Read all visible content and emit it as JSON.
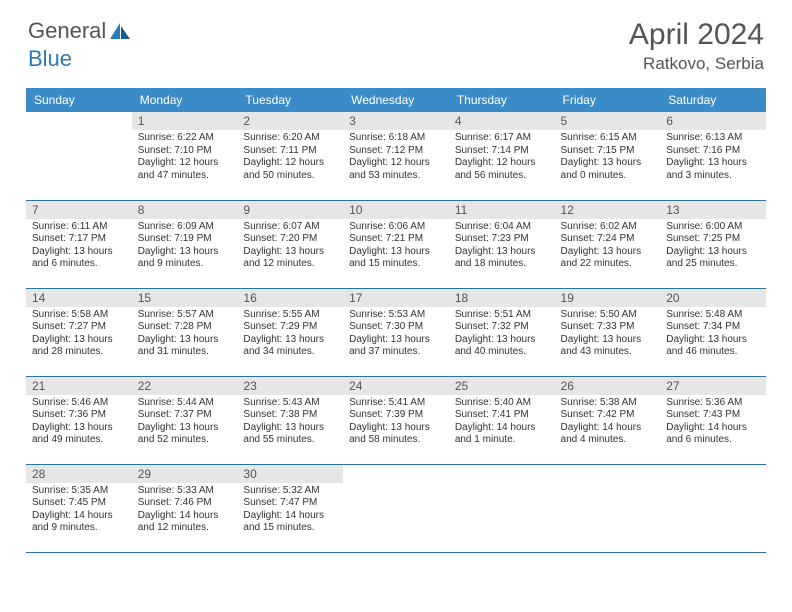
{
  "brand": {
    "part1": "General",
    "part2": "Blue"
  },
  "title": "April 2024",
  "location": "Ratkovo, Serbia",
  "colors": {
    "header_bg": "#3b8bc8",
    "header_text": "#ffffff",
    "daynum_bg": "#e6e6e6",
    "row_border": "#2a6fa8",
    "text": "#333333",
    "brand_gray": "#555555",
    "brand_blue": "#2a7ab8"
  },
  "day_headers": [
    "Sunday",
    "Monday",
    "Tuesday",
    "Wednesday",
    "Thursday",
    "Friday",
    "Saturday"
  ],
  "weeks": [
    [
      null,
      {
        "n": "1",
        "sr": "6:22 AM",
        "ss": "7:10 PM",
        "dl": "12 hours and 47 minutes."
      },
      {
        "n": "2",
        "sr": "6:20 AM",
        "ss": "7:11 PM",
        "dl": "12 hours and 50 minutes."
      },
      {
        "n": "3",
        "sr": "6:18 AM",
        "ss": "7:12 PM",
        "dl": "12 hours and 53 minutes."
      },
      {
        "n": "4",
        "sr": "6:17 AM",
        "ss": "7:14 PM",
        "dl": "12 hours and 56 minutes."
      },
      {
        "n": "5",
        "sr": "6:15 AM",
        "ss": "7:15 PM",
        "dl": "13 hours and 0 minutes."
      },
      {
        "n": "6",
        "sr": "6:13 AM",
        "ss": "7:16 PM",
        "dl": "13 hours and 3 minutes."
      }
    ],
    [
      {
        "n": "7",
        "sr": "6:11 AM",
        "ss": "7:17 PM",
        "dl": "13 hours and 6 minutes."
      },
      {
        "n": "8",
        "sr": "6:09 AM",
        "ss": "7:19 PM",
        "dl": "13 hours and 9 minutes."
      },
      {
        "n": "9",
        "sr": "6:07 AM",
        "ss": "7:20 PM",
        "dl": "13 hours and 12 minutes."
      },
      {
        "n": "10",
        "sr": "6:06 AM",
        "ss": "7:21 PM",
        "dl": "13 hours and 15 minutes."
      },
      {
        "n": "11",
        "sr": "6:04 AM",
        "ss": "7:23 PM",
        "dl": "13 hours and 18 minutes."
      },
      {
        "n": "12",
        "sr": "6:02 AM",
        "ss": "7:24 PM",
        "dl": "13 hours and 22 minutes."
      },
      {
        "n": "13",
        "sr": "6:00 AM",
        "ss": "7:25 PM",
        "dl": "13 hours and 25 minutes."
      }
    ],
    [
      {
        "n": "14",
        "sr": "5:58 AM",
        "ss": "7:27 PM",
        "dl": "13 hours and 28 minutes."
      },
      {
        "n": "15",
        "sr": "5:57 AM",
        "ss": "7:28 PM",
        "dl": "13 hours and 31 minutes."
      },
      {
        "n": "16",
        "sr": "5:55 AM",
        "ss": "7:29 PM",
        "dl": "13 hours and 34 minutes."
      },
      {
        "n": "17",
        "sr": "5:53 AM",
        "ss": "7:30 PM",
        "dl": "13 hours and 37 minutes."
      },
      {
        "n": "18",
        "sr": "5:51 AM",
        "ss": "7:32 PM",
        "dl": "13 hours and 40 minutes."
      },
      {
        "n": "19",
        "sr": "5:50 AM",
        "ss": "7:33 PM",
        "dl": "13 hours and 43 minutes."
      },
      {
        "n": "20",
        "sr": "5:48 AM",
        "ss": "7:34 PM",
        "dl": "13 hours and 46 minutes."
      }
    ],
    [
      {
        "n": "21",
        "sr": "5:46 AM",
        "ss": "7:36 PM",
        "dl": "13 hours and 49 minutes."
      },
      {
        "n": "22",
        "sr": "5:44 AM",
        "ss": "7:37 PM",
        "dl": "13 hours and 52 minutes."
      },
      {
        "n": "23",
        "sr": "5:43 AM",
        "ss": "7:38 PM",
        "dl": "13 hours and 55 minutes."
      },
      {
        "n": "24",
        "sr": "5:41 AM",
        "ss": "7:39 PM",
        "dl": "13 hours and 58 minutes."
      },
      {
        "n": "25",
        "sr": "5:40 AM",
        "ss": "7:41 PM",
        "dl": "14 hours and 1 minute."
      },
      {
        "n": "26",
        "sr": "5:38 AM",
        "ss": "7:42 PM",
        "dl": "14 hours and 4 minutes."
      },
      {
        "n": "27",
        "sr": "5:36 AM",
        "ss": "7:43 PM",
        "dl": "14 hours and 6 minutes."
      }
    ],
    [
      {
        "n": "28",
        "sr": "5:35 AM",
        "ss": "7:45 PM",
        "dl": "14 hours and 9 minutes."
      },
      {
        "n": "29",
        "sr": "5:33 AM",
        "ss": "7:46 PM",
        "dl": "14 hours and 12 minutes."
      },
      {
        "n": "30",
        "sr": "5:32 AM",
        "ss": "7:47 PM",
        "dl": "14 hours and 15 minutes."
      },
      null,
      null,
      null,
      null
    ]
  ],
  "labels": {
    "sunrise": "Sunrise: ",
    "sunset": "Sunset: ",
    "daylight": "Daylight: "
  }
}
